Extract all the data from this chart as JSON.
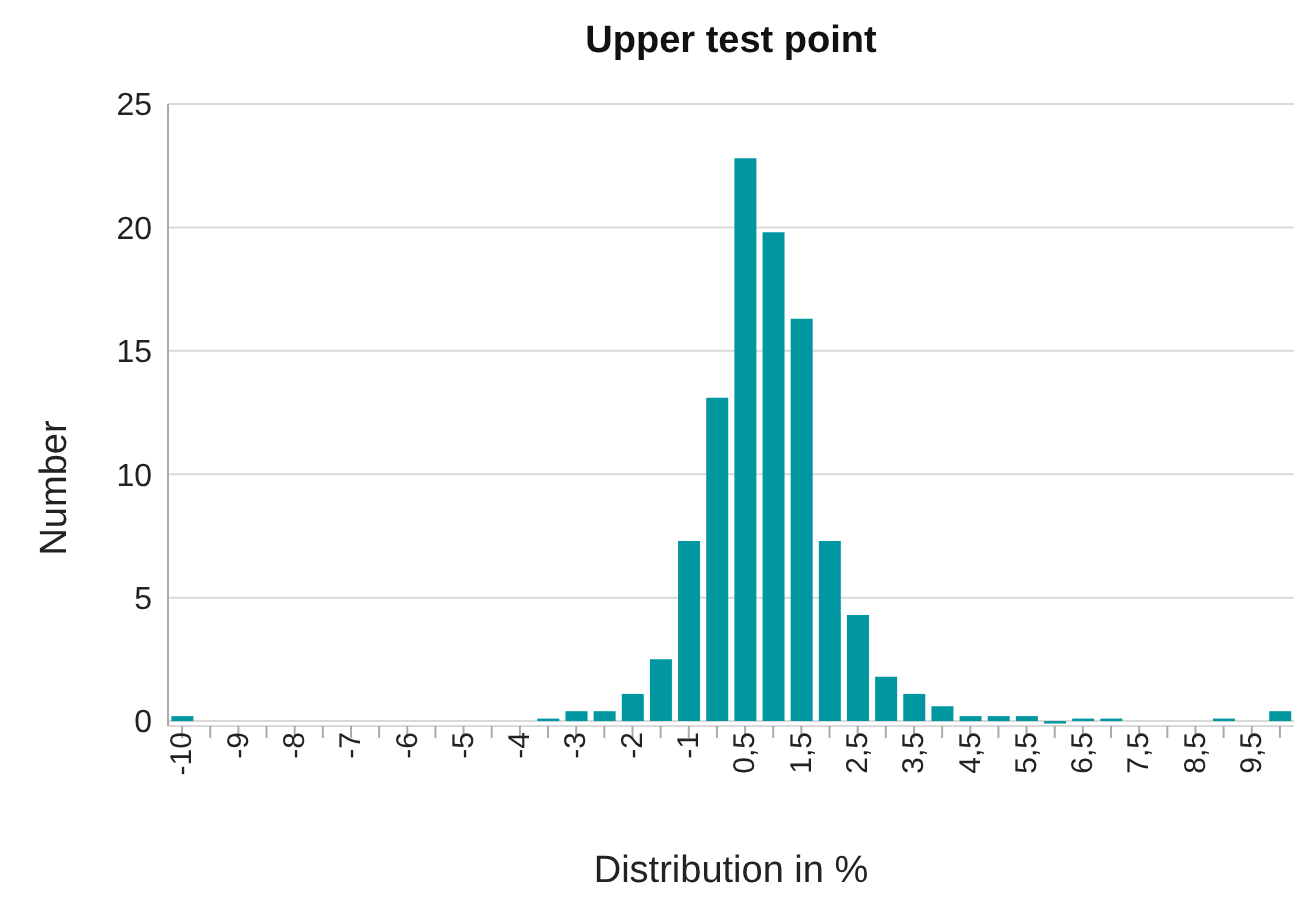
{
  "chart_data": {
    "type": "bar",
    "title": "Upper test point",
    "xlabel": "Distribution in %",
    "ylabel": "Number",
    "categories": [
      "-10",
      null,
      "-9",
      null,
      "-8",
      null,
      "-7",
      null,
      "-6",
      null,
      "-5",
      null,
      "-4",
      null,
      "-3",
      null,
      "-2",
      null,
      "-1",
      null,
      "0,5",
      null,
      "1,5",
      null,
      "2,5",
      null,
      "3,5",
      null,
      "4,5",
      null,
      "5,5",
      null,
      "6,5",
      null,
      "7,5",
      null,
      "8,5",
      null,
      "9,5",
      null
    ],
    "values": [
      0.2,
      0,
      0,
      0,
      0,
      0,
      0,
      0,
      0,
      0,
      0,
      0,
      0,
      0.1,
      0.4,
      0.4,
      1.1,
      2.5,
      7.3,
      13.1,
      22.8,
      19.8,
      16.3,
      7.3,
      4.3,
      1.8,
      1.1,
      0.6,
      0.2,
      0.2,
      0.2,
      -0.1,
      0.1,
      0.1,
      0,
      0,
      0,
      0.1,
      0,
      0.4
    ],
    "color": "#0097a0",
    "ylim": [
      -0.2,
      25
    ],
    "yticks": [
      0,
      5,
      10,
      15,
      20,
      25
    ],
    "grid": "y"
  }
}
